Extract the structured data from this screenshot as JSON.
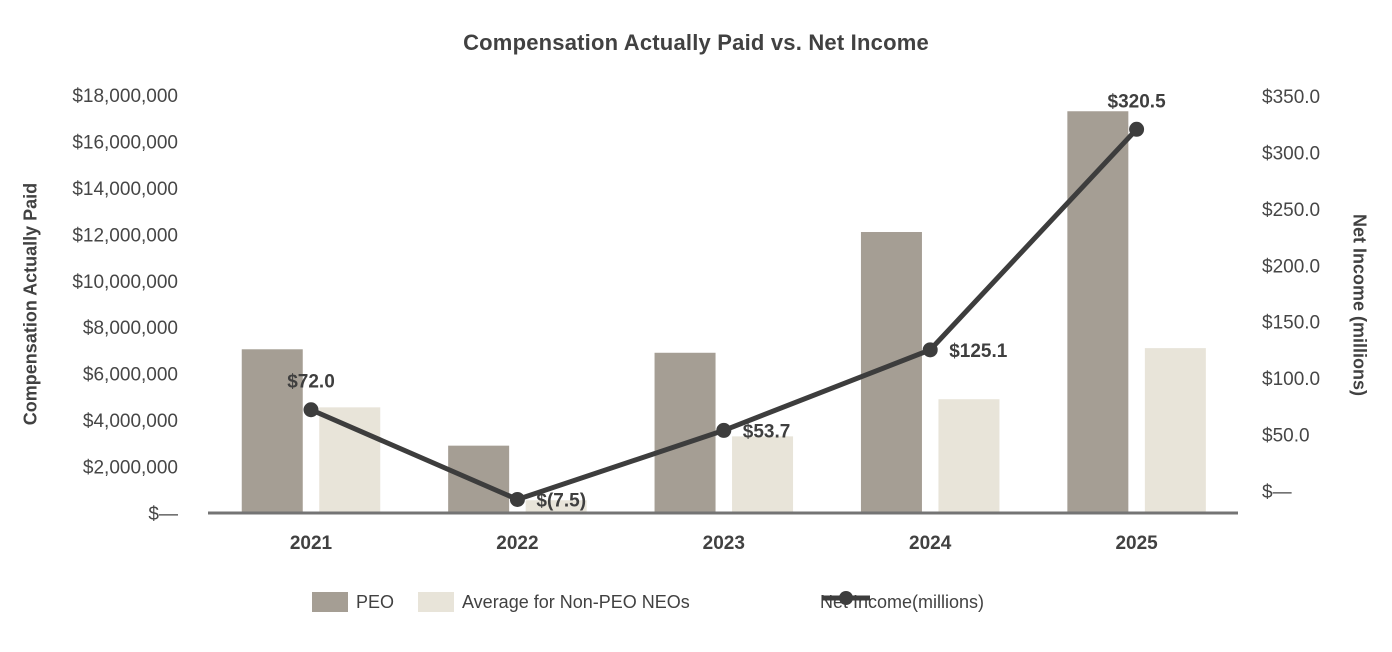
{
  "title": "Compensation Actually Paid vs. Net Income",
  "chart_data": {
    "type": "combo-bar-line-dual-axis",
    "grid": false,
    "legend_position": "bottom",
    "categories": [
      "2021",
      "2022",
      "2023",
      "2024",
      "2025"
    ],
    "series": [
      {
        "name": "PEO",
        "type": "bar",
        "axis": "left",
        "color": "#a59e94",
        "values": [
          7050000,
          2900000,
          6900000,
          12100000,
          17300000
        ]
      },
      {
        "name": "Average for Non-PEO NEOs",
        "type": "bar",
        "axis": "left",
        "color": "#e8e4d9",
        "values": [
          4550000,
          550000,
          3300000,
          4900000,
          7100000
        ]
      },
      {
        "name": "Net Income(millions)",
        "type": "line",
        "axis": "right",
        "color": "#3d3d3d",
        "values": [
          72.0,
          -7.5,
          53.7,
          125.1,
          320.5
        ],
        "point_labels": [
          "$72.0",
          "$(7.5)",
          "$53.7",
          "$125.1",
          "$320.5"
        ],
        "label_side": [
          "above",
          "right",
          "right",
          "right",
          "above"
        ]
      }
    ],
    "left_axis": {
      "title": "Compensation Actually Paid",
      "min": 0,
      "max": 18000000,
      "ticks": [
        {
          "value": 18000000,
          "label": "$18,000,000"
        },
        {
          "value": 16000000,
          "label": "$16,000,000"
        },
        {
          "value": 14000000,
          "label": "$14,000,000"
        },
        {
          "value": 12000000,
          "label": "$12,000,000"
        },
        {
          "value": 10000000,
          "label": "$10,000,000"
        },
        {
          "value": 8000000,
          "label": "$8,000,000"
        },
        {
          "value": 6000000,
          "label": "$6,000,000"
        },
        {
          "value": 4000000,
          "label": "$4,000,000"
        },
        {
          "value": 2000000,
          "label": "$2,000,000"
        },
        {
          "value": 0,
          "label": "$—"
        }
      ]
    },
    "right_axis": {
      "title": "Net Income (millions)",
      "min": -19.5,
      "max": 350,
      "ticks": [
        {
          "value": 350,
          "label": "$350.0"
        },
        {
          "value": 300,
          "label": "$300.0"
        },
        {
          "value": 250,
          "label": "$250.0"
        },
        {
          "value": 200,
          "label": "$200.0"
        },
        {
          "value": 150,
          "label": "$150.0"
        },
        {
          "value": 100,
          "label": "$100.0"
        },
        {
          "value": 50,
          "label": "$50.0"
        },
        {
          "value": 0,
          "label": "$—"
        }
      ]
    },
    "axis_line_color": "#747474",
    "text_color": "#464646"
  }
}
